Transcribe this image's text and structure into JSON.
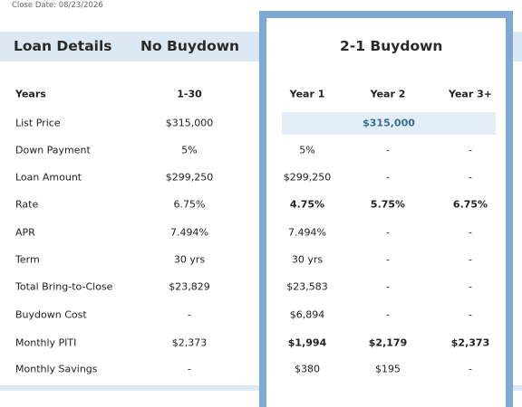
{
  "header": {
    "close_date": "Close Date: 08/23/2026",
    "columns": [
      "Loan Details",
      "No Buydown",
      "2-1 Buydown"
    ]
  },
  "table": {
    "header": [
      "Years",
      "1-30",
      "Year 1",
      "Year 2",
      "Year 3+"
    ],
    "rows": [
      [
        "List Price",
        "$315,000",
        "$315,000"
      ],
      [
        "Down Payment",
        "5%",
        "5%",
        "-",
        "-"
      ],
      [
        "Loan Amount",
        "$299,250",
        "$299,250",
        "-",
        "-"
      ],
      [
        "Rate",
        "6.75%",
        "4.75%",
        "5.75%",
        "6.75%"
      ],
      [
        "APR",
        "7.494%",
        "7.494%",
        "-",
        "-"
      ],
      [
        "Term",
        "30 yrs",
        "30 yrs",
        "-",
        "-"
      ],
      [
        "Total Bring-to-Close",
        "$23,829",
        "$23,583",
        "-",
        "-"
      ],
      [
        "Buydown Cost",
        "-",
        "$6,894",
        "-",
        "-"
      ],
      [
        "Monthly PITI",
        "$2,373",
        "$1,994",
        "$2,179",
        "$2,373"
      ],
      [
        "Monthly Savings",
        "-",
        "$380",
        "$195",
        "-"
      ]
    ]
  }
}
